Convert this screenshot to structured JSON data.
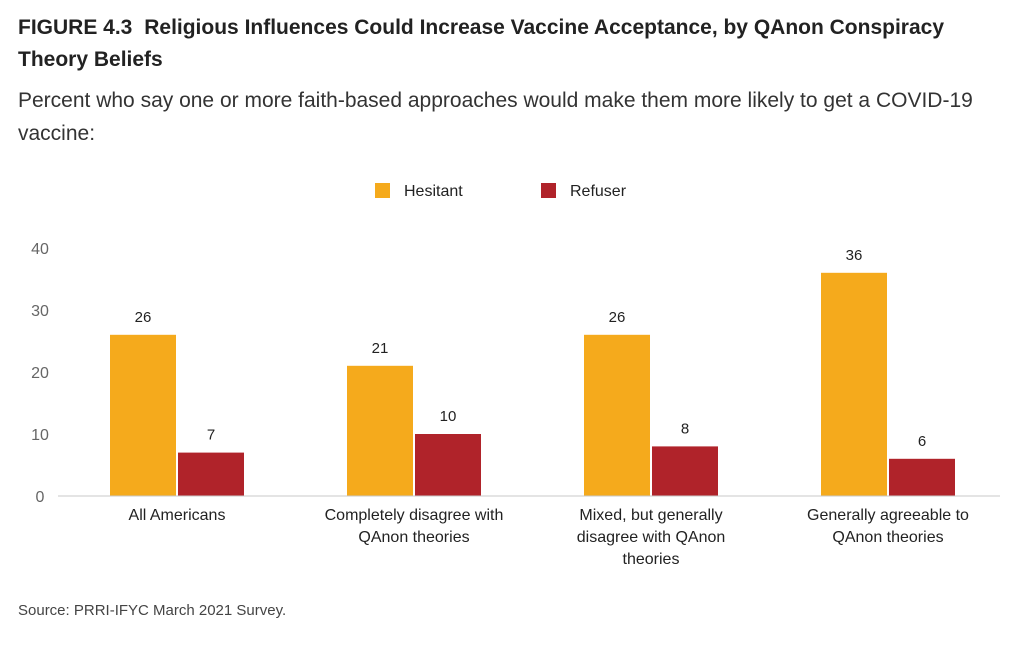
{
  "figure": {
    "label": "FIGURE 4.3",
    "title": "Religious Influences Could Increase Vaccine Acceptance, by QAnon Conspiracy Theory Beliefs",
    "subtitle": "Percent who say one or more faith-based approaches would make them more likely to get a COVID-19 vaccine:",
    "source": "Source: PRRI-IFYC March 2021 Survey."
  },
  "chart_data": {
    "type": "bar",
    "categories": [
      [
        "All Americans"
      ],
      [
        "Completely disagree with",
        "QAnon theories"
      ],
      [
        "Mixed, but generally",
        "disagree with QAnon",
        "theories"
      ],
      [
        "Generally agreeable to",
        "QAnon theories"
      ]
    ],
    "series": [
      {
        "name": "Hesitant",
        "color": "#F5AA1C",
        "values": [
          26,
          21,
          26,
          36
        ]
      },
      {
        "name": "Refuser",
        "color": "#B0232A",
        "values": [
          7,
          10,
          8,
          6
        ]
      }
    ],
    "y_ticks": [
      0,
      10,
      20,
      30,
      40
    ],
    "ylim": [
      0,
      40
    ],
    "legend_position": "top-center",
    "grid": false
  }
}
